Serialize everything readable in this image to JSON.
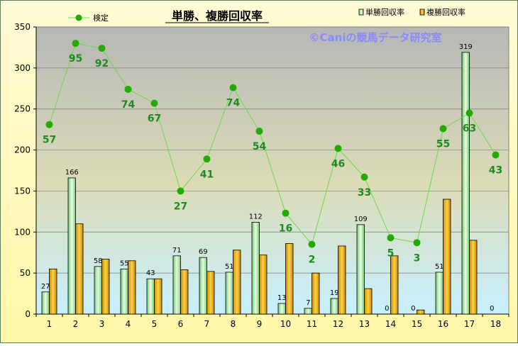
{
  "chart_data": {
    "type": "bar",
    "title": "単勝、複勝回収率",
    "watermark": "©Caniの競馬データ研究室",
    "xlabel": "",
    "ylabel": "",
    "ylim": [
      0,
      350
    ],
    "yticks": [
      0,
      50,
      100,
      150,
      200,
      250,
      300,
      350
    ],
    "categories": [
      "1",
      "2",
      "3",
      "4",
      "5",
      "6",
      "7",
      "8",
      "9",
      "10",
      "11",
      "12",
      "13",
      "14",
      "15",
      "16",
      "17",
      "18"
    ],
    "series": [
      {
        "name": "単勝回収率",
        "kind": "bar",
        "color": "#a8e4a8",
        "values": [
          27,
          166,
          58,
          55,
          43,
          71,
          69,
          51,
          112,
          13,
          7,
          19,
          109,
          0,
          0,
          51,
          319,
          0
        ],
        "labels": [
          "27",
          "166",
          "58",
          "55",
          "43",
          "71",
          "69",
          "51",
          "112",
          "13",
          "7",
          "19",
          "109",
          "0",
          "0",
          "51",
          "319",
          "0"
        ]
      },
      {
        "name": "複勝回収率",
        "kind": "bar",
        "color": "#f0b400",
        "values": [
          55,
          110,
          67,
          65,
          43,
          54,
          52,
          78,
          72,
          86,
          50,
          83,
          31,
          71,
          5,
          140,
          90,
          0
        ]
      },
      {
        "name": "検定",
        "kind": "line",
        "color": "#22aa00",
        "values": [
          231,
          330,
          324,
          274,
          257,
          150,
          189,
          276,
          223,
          123,
          85,
          202,
          167,
          93,
          87,
          226,
          245,
          194
        ],
        "labels": [
          "57",
          "95",
          "92",
          "74",
          "67",
          "27",
          "41",
          "74",
          "54",
          "16",
          "2",
          "46",
          "33",
          "5",
          "3",
          "55",
          "63",
          "43"
        ]
      }
    ],
    "legend": {
      "position": "top"
    },
    "grid": true
  }
}
